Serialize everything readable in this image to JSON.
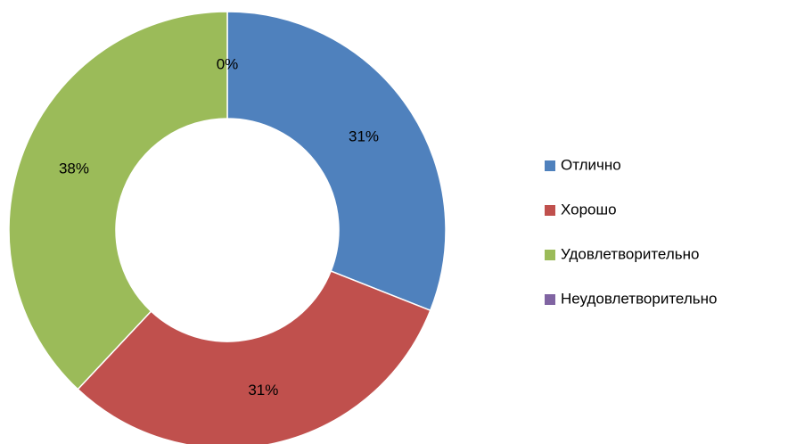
{
  "chart_data": {
    "type": "donut",
    "categories": [
      "Отлично",
      "Хорошо",
      "Удовлетворительно",
      "Неудовлетворительно"
    ],
    "values": [
      31,
      31,
      38,
      0
    ],
    "value_labels": [
      "31%",
      "31%",
      "38%",
      "0%"
    ],
    "colors": [
      "#4f81bd",
      "#c0504d",
      "#9bbb59",
      "#8064a2"
    ],
    "legend": "right"
  }
}
